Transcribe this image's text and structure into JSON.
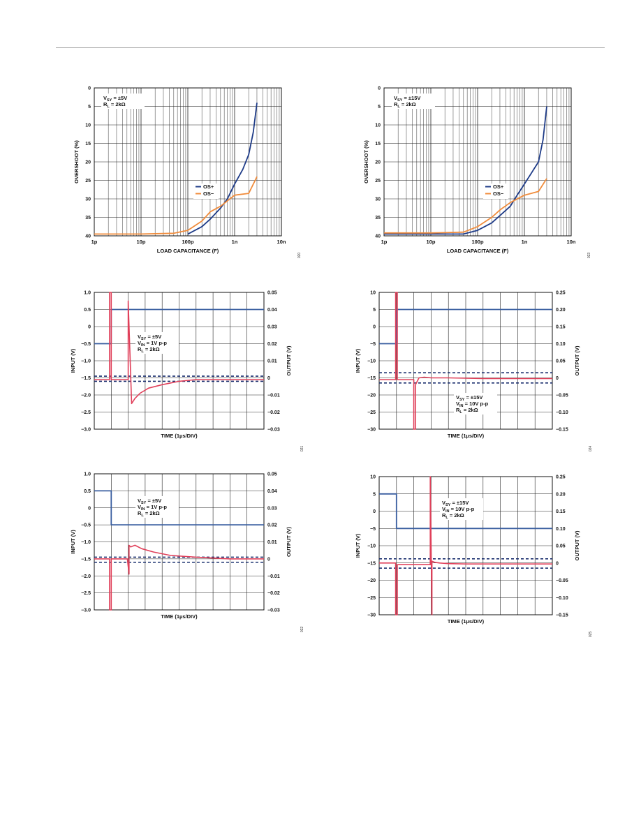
{
  "chart_data": [
    {
      "type": "line",
      "xlabel": "LOAD CAPACITANCE (F)",
      "ylabel": "OVERSHOOT (%)",
      "xscale": "log",
      "xlim": [
        1e-12,
        1e-08
      ],
      "ylim": [
        0,
        40
      ],
      "xticks": [
        "1p",
        "10p",
        "100p",
        "1n",
        "10n"
      ],
      "yticks": [
        "0",
        "5",
        "10",
        "15",
        "20",
        "25",
        "30",
        "35",
        "40"
      ],
      "grid": true,
      "annotation": [
        "V SY = ±5V",
        "R L = 2kΩ"
      ],
      "legend": {
        "placement": "center-right",
        "entries": [
          "OS+",
          "OS−"
        ]
      },
      "figure_id": "020",
      "series": [
        {
          "name": "OS+",
          "color": "#1f3c88",
          "x": [
            1e-10,
            2e-10,
            3e-10,
            5e-10,
            7e-10,
            1e-09,
            1.5e-09,
            2e-09,
            2.5e-09,
            3e-09
          ],
          "y": [
            0.5,
            2.5,
            4.5,
            7.5,
            10,
            14,
            18,
            22,
            28,
            36
          ]
        },
        {
          "name": "OS−",
          "color": "#f08c3c",
          "x": [
            1e-12,
            1e-11,
            5e-11,
            1e-10,
            2e-10,
            3e-10,
            5e-10,
            1e-09,
            2e-09,
            3e-09
          ],
          "y": [
            0.5,
            0.5,
            0.7,
            1.5,
            4,
            6.5,
            8,
            11,
            11.5,
            16
          ]
        }
      ]
    },
    {
      "type": "line",
      "xlabel": "LOAD CAPACITANCE (F)",
      "ylabel": "OVERSHOOT (%)",
      "xscale": "log",
      "xlim": [
        1e-12,
        1e-08
      ],
      "ylim": [
        0,
        40
      ],
      "xticks": [
        "1p",
        "10p",
        "100p",
        "1n",
        "10n"
      ],
      "yticks": [
        "0",
        "5",
        "10",
        "15",
        "20",
        "25",
        "30",
        "35",
        "40"
      ],
      "grid": true,
      "annotation": [
        "V SY = ±15V",
        "R L = 2kΩ"
      ],
      "legend": {
        "placement": "center-right",
        "entries": [
          "OS+",
          "OS−"
        ]
      },
      "figure_id": "023",
      "series": [
        {
          "name": "OS+",
          "color": "#1f3c88",
          "x": [
            1e-12,
            1e-11,
            5e-11,
            1e-10,
            2e-10,
            3e-10,
            5e-10,
            7e-10,
            1e-09,
            2e-09,
            2.5e-09,
            3e-09
          ],
          "y": [
            0.5,
            0.5,
            0.5,
            1.5,
            3.5,
            5.5,
            8,
            11,
            14,
            20,
            26,
            35
          ]
        },
        {
          "name": "OS−",
          "color": "#f08c3c",
          "x": [
            1e-12,
            1e-11,
            5e-11,
            1e-10,
            2e-10,
            3e-10,
            5e-10,
            1e-09,
            2e-09,
            3e-09
          ],
          "y": [
            0.8,
            0.8,
            1,
            2.5,
            5,
            7,
            9,
            11,
            12,
            15.5
          ]
        }
      ]
    },
    {
      "type": "line",
      "xlabel": "TIME (1µs/DIV)",
      "ylabel": "INPUT (V)",
      "y2label": "OUTPUT (V)",
      "xlim": [
        0,
        10
      ],
      "ylim": [
        -3,
        1
      ],
      "y2lim": [
        -0.03,
        0.05
      ],
      "yticks": [
        "1.0",
        "0.5",
        "0",
        "−0.5",
        "−1.0",
        "−1.5",
        "−2.0",
        "−2.5",
        "−3.0"
      ],
      "y2ticks": [
        "0.05",
        "0.04",
        "0.03",
        "0.02",
        "0.01",
        "0",
        "−0.01",
        "−0.02",
        "−0.03"
      ],
      "grid": true,
      "annotation": [
        "V SY = ±5V",
        "V IN = 1V p-p",
        "R L = 2kΩ"
      ],
      "figure_id": "021",
      "dashed_levels_y2": [
        0.001,
        -0.002
      ],
      "series": [
        {
          "name": "",
          "axis": "y",
          "color": "#3a5fa0",
          "x": [
            0,
            1,
            1,
            10
          ],
          "y": [
            -0.5,
            -0.5,
            0.5,
            0.5
          ]
        },
        {
          "name": "",
          "axis": "y2",
          "color": "#e0405a",
          "x": [
            0,
            0.9,
            0.9,
            1.0,
            1.0,
            2.0,
            2.0,
            2.2,
            2.4,
            2.7,
            3.2,
            4,
            5,
            6,
            7,
            8,
            10
          ],
          "y": [
            -0.001,
            -0.001,
            0.05,
            0.05,
            -0.001,
            -0.001,
            0.045,
            -0.015,
            -0.012,
            -0.009,
            -0.006,
            -0.004,
            -0.002,
            -0.001,
            -0.001,
            -0.001,
            -0.001
          ]
        }
      ]
    },
    {
      "type": "line",
      "xlabel": "TIME (1µs/DIV)",
      "ylabel": "INPUT (V)",
      "y2label": "OUTPUT (V)",
      "xlim": [
        0,
        10
      ],
      "ylim": [
        -30,
        10
      ],
      "y2lim": [
        -0.15,
        0.25
      ],
      "yticks": [
        "10",
        "5",
        "0",
        "−5",
        "−10",
        "−15",
        "−20",
        "−25",
        "−30"
      ],
      "y2ticks": [
        "0.25",
        "0.20",
        "0.15",
        "0.10",
        "0.05",
        "0",
        "−0.05",
        "−0.10",
        "−0.15"
      ],
      "grid": true,
      "annotation": [
        "V SY = ±15V",
        "V IN = 10V p-p",
        "R L = 2kΩ"
      ],
      "figure_id": "024",
      "dashed_levels_y2": [
        0.015,
        -0.015
      ],
      "series": [
        {
          "name": "",
          "axis": "y",
          "color": "#3a5fa0",
          "x": [
            0,
            1,
            1,
            10
          ],
          "y": [
            -5,
            -5,
            5,
            5
          ]
        },
        {
          "name": "",
          "axis": "y2",
          "color": "#e0405a",
          "x": [
            0,
            0.95,
            0.95,
            1.05,
            1.05,
            2.0,
            2.0,
            2.1,
            2.1,
            2.3,
            2.6,
            3.0,
            4,
            6,
            8,
            10
          ],
          "y": [
            -0.005,
            -0.005,
            0.25,
            0.25,
            -0.005,
            -0.005,
            -0.15,
            -0.15,
            -0.02,
            0.0,
            0.002,
            0.0,
            0.0,
            -0.002,
            -0.002,
            -0.002
          ]
        }
      ]
    },
    {
      "type": "line",
      "xlabel": "TIME (1µs/DIV)",
      "ylabel": "INPUT (V)",
      "y2label": "OUTPUT (V)",
      "xlim": [
        0,
        10
      ],
      "ylim": [
        -3,
        1
      ],
      "y2lim": [
        -0.03,
        0.05
      ],
      "yticks": [
        "1.0",
        "0.5",
        "0",
        "−0.5",
        "−1.0",
        "−1.5",
        "−2.0",
        "−2.5",
        "−3.0"
      ],
      "y2ticks": [
        "0.05",
        "0.04",
        "0.03",
        "0.02",
        "0.01",
        "0",
        "−0.01",
        "−0.02",
        "−0.03"
      ],
      "grid": true,
      "annotation": [
        "V SY = ±5V",
        "V IN = 1V p-p",
        "R L = 2kΩ"
      ],
      "figure_id": "022",
      "dashed_levels_y2": [
        0.001,
        -0.002
      ],
      "series": [
        {
          "name": "",
          "axis": "y",
          "color": "#3a5fa0",
          "x": [
            0,
            1,
            1,
            10
          ],
          "y": [
            0.5,
            0.5,
            -0.5,
            -0.5
          ]
        },
        {
          "name": "",
          "axis": "y2",
          "color": "#e0405a",
          "x": [
            0,
            0.9,
            0.9,
            1.0,
            1.0,
            1.95,
            2.05,
            2.05,
            2.15,
            2.4,
            2.8,
            3.5,
            4.5,
            6,
            8,
            10
          ],
          "y": [
            0,
            0,
            -0.03,
            -0.03,
            0,
            0,
            -0.009,
            0.008,
            0.007,
            0.008,
            0.006,
            0.004,
            0.002,
            0.001,
            0.0,
            0.0
          ]
        }
      ]
    },
    {
      "type": "line",
      "xlabel": "TIME (1µs/DIV)",
      "ylabel": "INPUT (V)",
      "y2label": "OUTPUT (V)",
      "xlim": [
        0,
        10
      ],
      "ylim": [
        -30,
        10
      ],
      "y2lim": [
        -0.15,
        0.25
      ],
      "yticks": [
        "10",
        "5",
        "0",
        "−5",
        "−10",
        "−15",
        "−20",
        "−25",
        "−30"
      ],
      "y2ticks": [
        "0.25",
        "0.20",
        "0.15",
        "0.10",
        "0.05",
        "0",
        "−0.05",
        "−0.10",
        "−0.15"
      ],
      "grid": true,
      "annotation": [
        "V SY = ±15V",
        "V IN = 10V p-p",
        "R L = 2kΩ"
      ],
      "figure_id": "025",
      "dashed_levels_y2": [
        0.012,
        -0.015
      ],
      "series": [
        {
          "name": "",
          "axis": "y",
          "color": "#3a5fa0",
          "x": [
            0,
            1,
            1,
            10
          ],
          "y": [
            5,
            5,
            -5,
            -5
          ]
        },
        {
          "name": "",
          "axis": "y2",
          "color": "#e0405a",
          "x": [
            0,
            0.95,
            0.95,
            1.05,
            1.05,
            2.95,
            2.95,
            3.05,
            3.05,
            3.2,
            3.5,
            4,
            5,
            6,
            8,
            10
          ],
          "y": [
            0,
            0,
            -0.15,
            -0.15,
            -0.005,
            -0.005,
            0.25,
            -0.15,
            0.005,
            0.002,
            0.0,
            -0.002,
            -0.003,
            -0.003,
            -0.003,
            -0.003
          ]
        }
      ]
    }
  ]
}
